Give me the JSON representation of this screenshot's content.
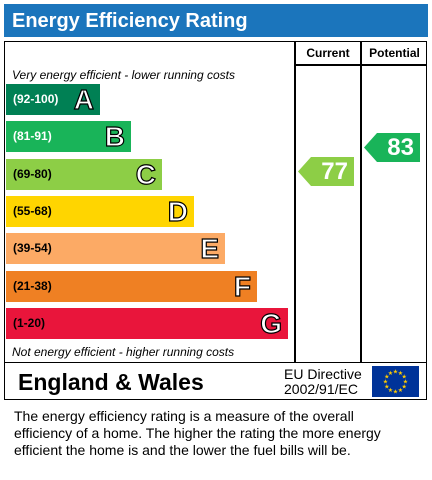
{
  "title": "Energy Efficiency Rating",
  "headers": {
    "current": "Current",
    "potential": "Potential"
  },
  "top_note": "Very energy efficient - lower running costs",
  "bottom_note": "Not energy efficient - higher running costs",
  "bands": [
    {
      "range": "(92-100)",
      "letter": "A",
      "color": "#008054",
      "text_color": "#ffffff"
    },
    {
      "range": "(81-91)",
      "letter": "B",
      "color": "#19b459",
      "text_color": "#ffffff"
    },
    {
      "range": "(69-80)",
      "letter": "C",
      "color": "#8dce46",
      "text_color": "#000000"
    },
    {
      "range": "(55-68)",
      "letter": "D",
      "color": "#ffd500",
      "text_color": "#000000"
    },
    {
      "range": "(39-54)",
      "letter": "E",
      "color": "#fcaa65",
      "text_color": "#000000"
    },
    {
      "range": "(21-38)",
      "letter": "F",
      "color": "#ef8023",
      "text_color": "#000000"
    },
    {
      "range": "(1-20)",
      "letter": "G",
      "color": "#e9153b",
      "text_color": "#000000"
    }
  ],
  "current": {
    "value": "77",
    "color": "#8dce46"
  },
  "potential": {
    "value": "83",
    "color": "#19b459"
  },
  "region": "England & Wales",
  "directive": [
    "EU Directive",
    "2002/91/EC"
  ],
  "description": [
    "The energy efficiency rating is a measure of the overall",
    "efficiency of a home.  The higher the rating the more energy",
    "efficient the home is and the lower the fuel bills will be."
  ]
}
